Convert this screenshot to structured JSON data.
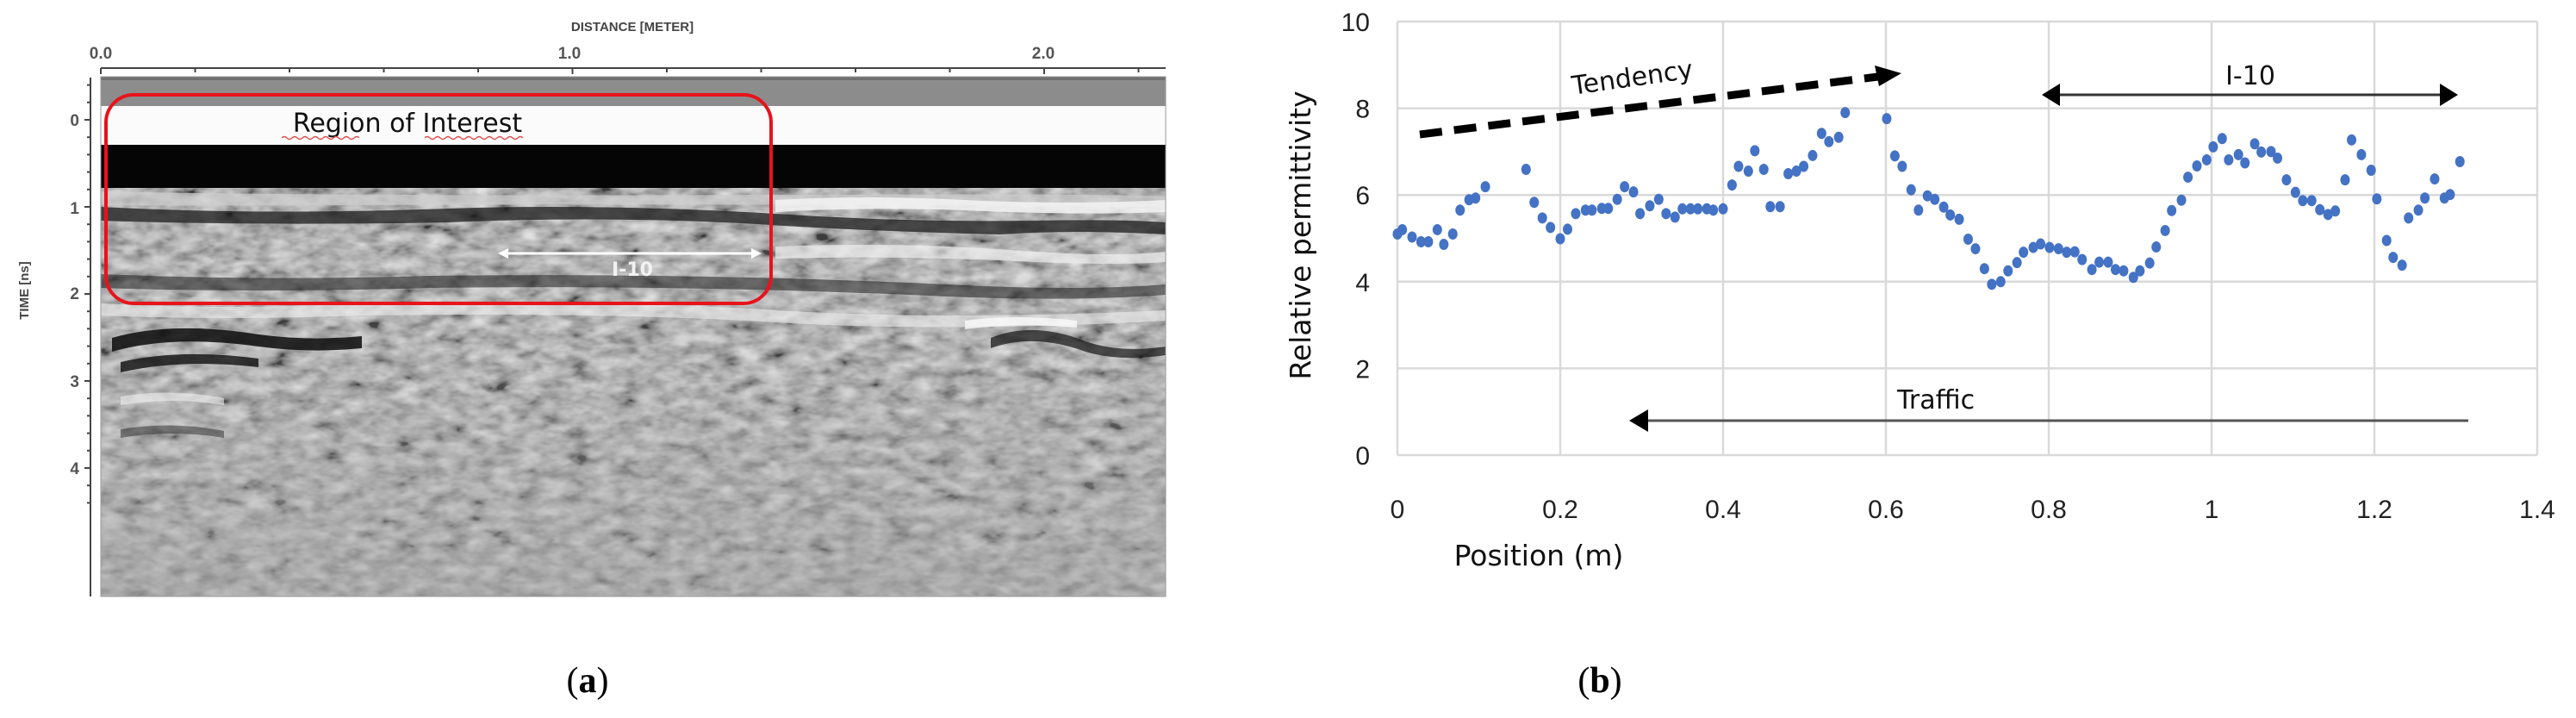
{
  "panels": {
    "a": {
      "label_open": "(",
      "label_letter": "a",
      "label_close": ")",
      "x_axis_title": "DISTANCE [METER]",
      "x_ticks": [
        "0.0",
        "1.0",
        "2.0"
      ],
      "y_axis_title": "TIME [ns]",
      "y_ticks": [
        "0",
        "1",
        "2",
        "3",
        "4"
      ],
      "roi_label": "Region of Interest",
      "roi_color": "#e8131b",
      "i10_label": "I-10"
    },
    "b": {
      "label_open": "(",
      "label_letter": "b",
      "label_close": ")",
      "tendency_label": "Tendency",
      "i10_label": "I-10",
      "traffic_label": "Traffic"
    }
  },
  "chart_data": [
    {
      "type": "heatmap",
      "title": "GPR radargram",
      "xlabel": "DISTANCE [METER]",
      "ylabel": "TIME [ns]",
      "x_tick_labels": [
        "0.0",
        "1.0",
        "2.0"
      ],
      "y_tick_labels": [
        "0",
        "1",
        "2",
        "3",
        "4"
      ],
      "xlim": [
        0.0,
        2.2
      ],
      "ylim": [
        4.5,
        -0.5
      ],
      "colormap": "grayscale",
      "annotations": [
        {
          "type": "rounded-rectangle",
          "label": "Region of Interest",
          "color": "#e8131b",
          "x_range": [
            0.02,
            1.4
          ],
          "time_range": [
            -0.3,
            1.5
          ]
        },
        {
          "type": "double-arrow",
          "label": "I-10",
          "color": "#ffffff",
          "x_range": [
            0.9,
            1.4
          ],
          "time": 1.15
        }
      ]
    },
    {
      "type": "scatter",
      "title": "",
      "xlabel": "Position (m)",
      "ylabel": "Relative permittivity",
      "xlim": [
        0,
        1.4
      ],
      "ylim": [
        0,
        10
      ],
      "x_ticks": [
        0,
        0.2,
        0.4,
        0.6,
        0.8,
        1,
        1.2,
        1.4
      ],
      "x_tick_labels": [
        "0",
        "0.2",
        "0.4",
        "0.6",
        "0.8",
        "1",
        "1.2",
        "1.4"
      ],
      "y_ticks": [
        0,
        2,
        4,
        6,
        8,
        10
      ],
      "y_tick_labels": [
        "0",
        "2",
        "4",
        "6",
        "8",
        "10"
      ],
      "grid": true,
      "legend": "none",
      "marker_color": "#4472c4",
      "series": [
        {
          "name": "Relative permittivity",
          "x": [
            0.0,
            0.006,
            0.018,
            0.029,
            0.038,
            0.049,
            0.057,
            0.068,
            0.077,
            0.088,
            0.096,
            0.108,
            0.158,
            0.168,
            0.178,
            0.188,
            0.2,
            0.209,
            0.219,
            0.231,
            0.239,
            0.251,
            0.259,
            0.27,
            0.279,
            0.29,
            0.298,
            0.31,
            0.321,
            0.33,
            0.341,
            0.35,
            0.36,
            0.369,
            0.38,
            0.388,
            0.4,
            0.411,
            0.419,
            0.431,
            0.439,
            0.45,
            0.458,
            0.47,
            0.48,
            0.49,
            0.499,
            0.51,
            0.521,
            0.53,
            0.542,
            0.55,
            0.601,
            0.611,
            0.62,
            0.631,
            0.64,
            0.651,
            0.66,
            0.671,
            0.679,
            0.69,
            0.701,
            0.71,
            0.721,
            0.73,
            0.741,
            0.75,
            0.761,
            0.769,
            0.781,
            0.79,
            0.801,
            0.812,
            0.822,
            0.832,
            0.841,
            0.853,
            0.862,
            0.873,
            0.882,
            0.892,
            0.904,
            0.912,
            0.924,
            0.932,
            0.943,
            0.951,
            0.963,
            0.971,
            0.982,
            0.994,
            1.002,
            1.013,
            1.021,
            1.033,
            1.041,
            1.053,
            1.061,
            1.073,
            1.081,
            1.092,
            1.103,
            1.112,
            1.123,
            1.133,
            1.143,
            1.152,
            1.164,
            1.172,
            1.184,
            1.196,
            1.203,
            1.215,
            1.223,
            1.234,
            1.242,
            1.254,
            1.262,
            1.274,
            1.286,
            1.293,
            1.305
          ],
          "y": [
            5.1,
            5.2,
            5.03,
            4.92,
            4.92,
            5.2,
            4.86,
            5.1,
            5.65,
            5.89,
            5.93,
            6.19,
            6.59,
            5.83,
            5.47,
            5.25,
            4.99,
            5.21,
            5.57,
            5.65,
            5.65,
            5.69,
            5.69,
            5.9,
            6.19,
            6.07,
            5.57,
            5.75,
            5.9,
            5.57,
            5.49,
            5.68,
            5.68,
            5.68,
            5.68,
            5.65,
            5.68,
            6.23,
            6.66,
            6.55,
            7.02,
            6.59,
            5.73,
            5.73,
            6.49,
            6.55,
            6.66,
            6.91,
            7.42,
            7.23,
            7.33,
            7.9,
            7.76,
            6.9,
            6.66,
            6.12,
            5.65,
            5.98,
            5.9,
            5.72,
            5.54,
            5.44,
            4.98,
            4.76,
            4.3,
            3.94,
            4.0,
            4.25,
            4.44,
            4.68,
            4.79,
            4.87,
            4.79,
            4.76,
            4.68,
            4.69,
            4.51,
            4.28,
            4.45,
            4.45,
            4.28,
            4.25,
            4.1,
            4.25,
            4.43,
            4.8,
            5.18,
            5.64,
            5.88,
            6.41,
            6.67,
            6.81,
            7.11,
            7.3,
            6.81,
            6.93,
            6.74,
            7.18,
            6.99,
            7.0,
            6.85,
            6.35,
            6.06,
            5.87,
            5.87,
            5.66,
            5.55,
            5.63,
            6.35,
            7.27,
            6.93,
            6.57,
            5.91,
            4.95,
            4.56,
            4.38,
            5.47,
            5.65,
            5.93,
            6.37,
            5.93,
            6.01,
            6.77
          ]
        }
      ],
      "annotations": [
        {
          "type": "dashed-arrow",
          "label": "Tendency",
          "from": [
            0.03,
            7.4
          ],
          "to": [
            0.62,
            8.8
          ]
        },
        {
          "type": "double-arrow",
          "label": "I-10",
          "from": [
            0.79,
            8.35
          ],
          "to": [
            1.3,
            8.35
          ]
        },
        {
          "type": "arrow",
          "label": "Traffic",
          "from": [
            1.31,
            0.8
          ],
          "to": [
            0.29,
            0.8
          ]
        }
      ]
    }
  ]
}
